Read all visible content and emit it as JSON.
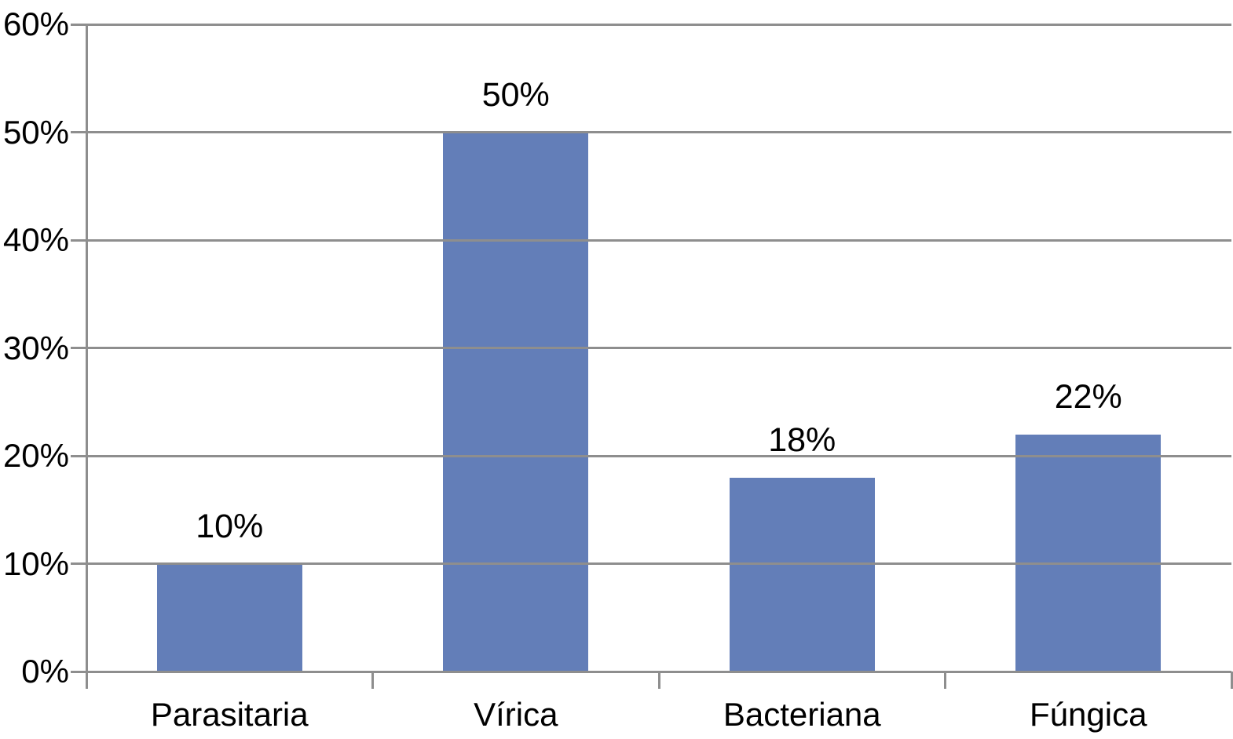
{
  "chart_data": {
    "type": "bar",
    "categories": [
      "Parasitaria",
      "Vírica",
      "Bacteriana",
      "Fúngica"
    ],
    "values": [
      10,
      50,
      18,
      22
    ],
    "data_labels": [
      "10%",
      "50%",
      "18%",
      "22%"
    ],
    "yticks": [
      0,
      10,
      20,
      30,
      40,
      50,
      60
    ],
    "ytick_labels": [
      "0%",
      "10%",
      "20%",
      "30%",
      "40%",
      "50%",
      "60%"
    ],
    "ylim": [
      0,
      60
    ],
    "title": "",
    "xlabel": "",
    "ylabel": "",
    "grid": true,
    "legend": false,
    "legend_position": "none",
    "colors": {
      "bar": "#637EB8",
      "grid": "#8E8E8E",
      "text": "#000000",
      "background": "#FFFFFF"
    }
  }
}
